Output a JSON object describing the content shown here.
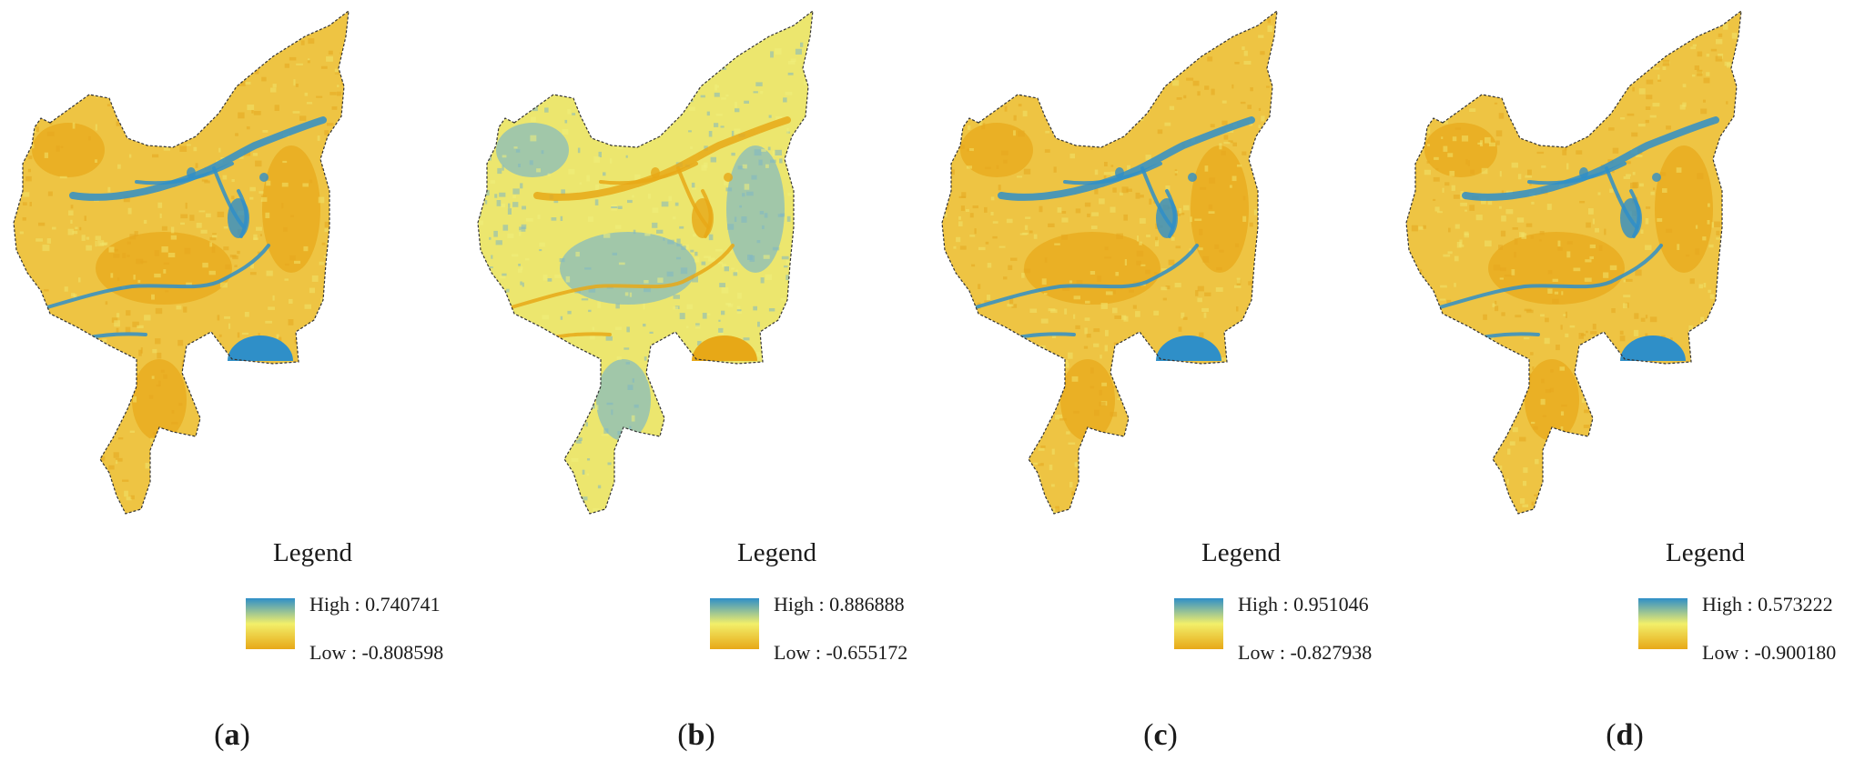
{
  "panels": [
    {
      "id": "a",
      "caption_letter": "a",
      "legend_title": "Legend",
      "high_label": "High : 0.740741",
      "low_label": "Low : -0.808598",
      "base_tone": "orange"
    },
    {
      "id": "b",
      "caption_letter": "b",
      "legend_title": "Legend",
      "high_label": "High : 0.886888",
      "low_label": "Low : -0.655172",
      "base_tone": "yellow"
    },
    {
      "id": "c",
      "caption_letter": "c",
      "legend_title": "Legend",
      "high_label": "High : 0.951046",
      "low_label": "Low : -0.827938",
      "base_tone": "orange"
    },
    {
      "id": "d",
      "caption_letter": "d",
      "legend_title": "Legend",
      "high_label": "High : 0.573222",
      "low_label": "Low : -0.900180",
      "base_tone": "orange"
    }
  ],
  "colors": {
    "high": "#2f8fc8",
    "mid": "#f2ef6a",
    "low": "#e7a817"
  }
}
